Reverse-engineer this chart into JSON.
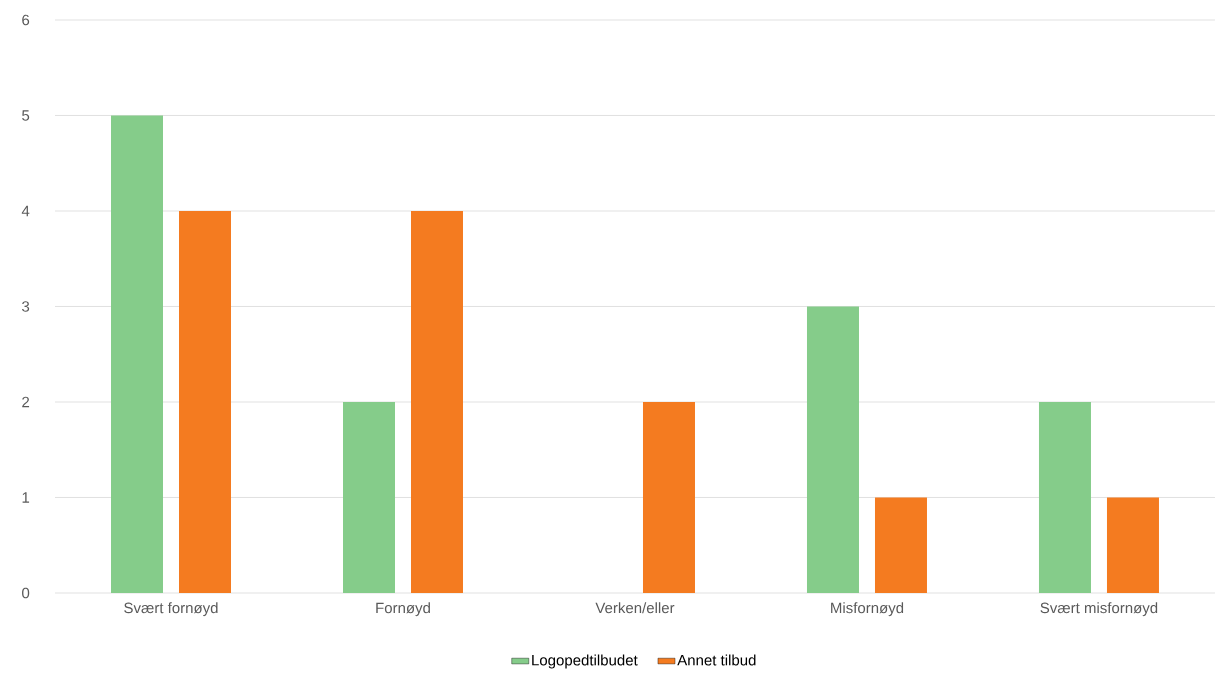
{
  "chart_data": {
    "type": "bar",
    "categories": [
      "Svært fornøyd",
      "Fornøyd",
      "Verken/eller",
      "Misfornøyd",
      "Svært misfornøyd"
    ],
    "series": [
      {
        "name": "Logopedtilbudet",
        "color": "#85cc8a",
        "values": [
          5,
          2,
          0,
          3,
          2
        ]
      },
      {
        "name": "Annet tilbud",
        "color": "#f47b20",
        "values": [
          4,
          4,
          2,
          1,
          1
        ]
      }
    ],
    "ylim": [
      0,
      6
    ],
    "yticks": [
      0,
      1,
      2,
      3,
      4,
      5,
      6
    ],
    "grid": "y",
    "legend": "bottom"
  }
}
